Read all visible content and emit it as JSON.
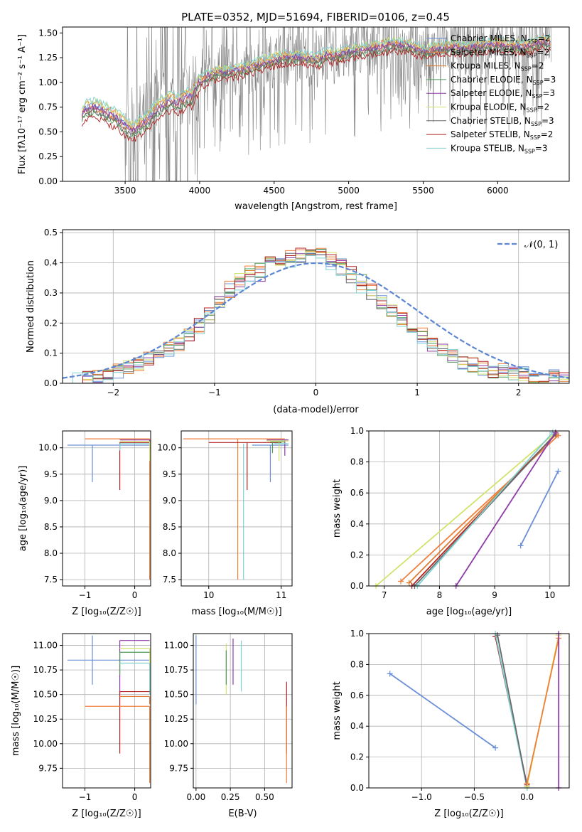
{
  "title": "PLATE=0352, MJD=51694, FIBERID=0106, z=0.45",
  "colors": {
    "series": [
      "#6a8fd8",
      "#f07f3c",
      "#e07a30",
      "#4f9a5a",
      "#8e3aa8",
      "#d2e36a",
      "#6a6a6a",
      "#b22222",
      "#7fd0d0"
    ],
    "data": "#808080",
    "gauss": "#5b86d6",
    "grid": "#b0b0b0"
  },
  "chart_data": [
    {
      "type": "line",
      "xlabel": "wavelength [Angstrom, rest frame]",
      "ylabel": "Flux [f",
      "ylabel_tex": "λ10⁻¹⁷ erg cm⁻² s⁻¹ A⁻¹]",
      "xlim": [
        3080,
        6480
      ],
      "ylim": [
        0.0,
        1.56
      ],
      "xticks": [
        3500,
        4000,
        4500,
        5000,
        5500,
        6000
      ],
      "yticks": [
        "0.00",
        "0.25",
        "0.50",
        "0.75",
        "1.00",
        "1.25",
        "1.50"
      ],
      "legend_position": "top-right",
      "legend": [
        {
          "label": "Chabrier MILES, N",
          "n": "2"
        },
        {
          "label": "Salpeter MILES, N",
          "n": "2"
        },
        {
          "label": "Kroupa MILES, N",
          "n": "2"
        },
        {
          "label": "Chabrier ELODIE, N",
          "n": "3"
        },
        {
          "label": "Salpeter ELODIE, N",
          "n": "3"
        },
        {
          "label": "Kroupa ELODIE, N",
          "n": "2"
        },
        {
          "label": "Chabrier STELIB, N",
          "n": "3"
        },
        {
          "label": "Salpeter STELIB, N",
          "n": "2"
        },
        {
          "label": "Kroupa STELIB, N",
          "n": "3"
        }
      ],
      "legend_sub": "SSP",
      "legend_eq": "=",
      "model_shape": {
        "x": [
          3210,
          3250,
          3300,
          3350,
          3400,
          3450,
          3500,
          3550,
          3600,
          3650,
          3700,
          3750,
          3800,
          3850,
          3900,
          3950,
          4000,
          4050,
          4100,
          4200,
          4300,
          4400,
          4500,
          4600,
          4700,
          4800,
          4850,
          4900,
          5000,
          5100,
          5200,
          5300,
          5400,
          5500,
          5600,
          5700,
          5800,
          5900,
          6000,
          6100,
          6200,
          6300
        ],
        "y": [
          0.68,
          0.72,
          0.74,
          0.7,
          0.66,
          0.62,
          0.55,
          0.5,
          0.55,
          0.6,
          0.7,
          0.76,
          0.8,
          0.78,
          0.82,
          0.85,
          1.0,
          1.05,
          1.08,
          1.1,
          1.12,
          1.18,
          1.22,
          1.25,
          1.24,
          1.22,
          1.28,
          1.25,
          1.3,
          1.32,
          1.35,
          1.38,
          1.36,
          1.3,
          1.33,
          1.35,
          1.34,
          1.36,
          1.38,
          1.36,
          1.35,
          1.4
        ]
      }
    },
    {
      "type": "bar",
      "xlabel": "(data-model)/error",
      "ylabel": "Normed distribution",
      "xlim": [
        -2.5,
        2.5
      ],
      "ylim": [
        0.0,
        0.51
      ],
      "xticks": [
        "−2",
        "−1",
        "0",
        "1",
        "2"
      ],
      "yticks": [
        "0.0",
        "0.1",
        "0.2",
        "0.3",
        "0.4",
        "0.5"
      ],
      "legend_position": "top-right",
      "gauss_label": "𝒩(0, 1)",
      "bin_width": 0.1,
      "histogram": [
        0.01,
        0.01,
        0.02,
        0.02,
        0.03,
        0.04,
        0.05,
        0.06,
        0.08,
        0.09,
        0.11,
        0.13,
        0.16,
        0.19,
        0.22,
        0.27,
        0.31,
        0.34,
        0.36,
        0.37,
        0.39,
        0.4,
        0.41,
        0.42,
        0.43,
        0.42,
        0.41,
        0.39,
        0.36,
        0.33,
        0.3,
        0.27,
        0.24,
        0.21,
        0.18,
        0.16,
        0.13,
        0.11,
        0.09,
        0.07,
        0.06,
        0.05,
        0.04,
        0.04,
        0.03,
        0.03,
        0.02,
        0.02,
        0.02,
        0.01
      ]
    },
    {
      "type": "scatter",
      "xlabel": "Z [log",
      "xlabel_tex": "₁₀(Z/Z",
      "xlabel_end": "☉)]",
      "ylabel": "age  [log",
      "ylabel_tex": "₁₀(age/yr)]",
      "xlim": [
        -1.45,
        0.32
      ],
      "ylim": [
        7.38,
        10.32
      ],
      "xticks": [
        "−1",
        "0"
      ],
      "yticks": [
        "7.5",
        "8.0",
        "8.5",
        "9.0",
        "9.5",
        "10.0"
      ],
      "segments": [
        {
          "c": 0,
          "y": 10.05,
          "x0": -1.35,
          "x1": 0.3,
          "drop": 9.35,
          "dx": -0.85
        },
        {
          "c": 1,
          "y": 10.17,
          "x0": -1.0,
          "x1": 0.3,
          "drop": 7.5,
          "dx": 0.3
        },
        {
          "c": 7,
          "y": 10.1,
          "x0": -0.3,
          "x1": 0.3,
          "drop": 9.2,
          "dx": -0.3
        },
        {
          "c": 4,
          "y": 10.15,
          "x0": -0.3,
          "x1": 0.3,
          "drop": 9.95,
          "dx": 0.3
        },
        {
          "c": 5,
          "y": 10.12,
          "x0": -0.3,
          "x1": 0.3,
          "drop": 9.75,
          "dx": 0.3
        },
        {
          "c": 8,
          "y": 10.08,
          "x0": -0.3,
          "x1": 0.3,
          "drop": 9.95,
          "dx": -0.3
        }
      ]
    },
    {
      "type": "scatter",
      "xlabel": "mass [log",
      "xlabel_tex": "₁₀(M/M",
      "xlabel_end": "☉)]",
      "xlim": [
        9.62,
        11.15
      ],
      "ylim": [
        7.38,
        10.32
      ],
      "xticks": [
        "10",
        "11"
      ],
      "yticks": [
        "7.5",
        "8.0",
        "8.5",
        "9.0",
        "9.5",
        "10.0"
      ],
      "segments": [
        {
          "c": 1,
          "y": 10.17,
          "x0": 9.65,
          "x1": 11.05,
          "drop": 7.5,
          "dx": 10.4
        },
        {
          "c": 7,
          "y": 10.1,
          "x0": 10.0,
          "x1": 11.0,
          "drop": 9.2,
          "dx": 10.53
        },
        {
          "c": 0,
          "y": 10.05,
          "x0": 10.6,
          "x1": 11.1,
          "drop": 9.35,
          "dx": 10.85
        },
        {
          "c": 4,
          "y": 10.15,
          "x0": 10.8,
          "x1": 11.1,
          "drop": 9.85,
          "dx": 11.05
        },
        {
          "c": 5,
          "y": 10.13,
          "x0": 10.8,
          "x1": 11.1,
          "drop": 9.75,
          "dx": 10.97
        },
        {
          "c": 8,
          "y": 10.08,
          "x0": 10.9,
          "x1": 11.1,
          "drop": 7.5,
          "dx": 10.48
        },
        {
          "c": 3,
          "y": 10.11,
          "x0": 10.85,
          "x1": 11.05,
          "drop": 9.9,
          "dx": 10.88
        }
      ]
    },
    {
      "type": "line",
      "xlabel": "age  [log",
      "xlabel_tex": "₁₀(age/yr)]",
      "ylabel": "mass weight",
      "xlim": [
        6.72,
        10.35
      ],
      "ylim": [
        0.0,
        1.0
      ],
      "xticks": [
        "7",
        "8",
        "9",
        "10"
      ],
      "yticks": [
        "0.0",
        "0.2",
        "0.4",
        "0.6",
        "0.8",
        "1.0"
      ],
      "lines": [
        {
          "c": 0,
          "x": [
            9.47,
            10.15
          ],
          "y": [
            0.26,
            0.74
          ]
        },
        {
          "c": 5,
          "x": [
            6.85,
            10.1
          ],
          "y": [
            0.0,
            0.99
          ]
        },
        {
          "c": 1,
          "x": [
            7.3,
            10.15
          ],
          "y": [
            0.03,
            0.97
          ]
        },
        {
          "c": 2,
          "x": [
            7.45,
            10.12
          ],
          "y": [
            0.02,
            0.98
          ]
        },
        {
          "c": 7,
          "x": [
            7.5,
            10.1
          ],
          "y": [
            0.0,
            0.98
          ]
        },
        {
          "c": 6,
          "x": [
            7.55,
            10.1
          ],
          "y": [
            0.0,
            0.98
          ]
        },
        {
          "c": 8,
          "x": [
            7.6,
            10.05
          ],
          "y": [
            0.0,
            0.99
          ]
        },
        {
          "c": 4,
          "x": [
            8.3,
            10.1
          ],
          "y": [
            0.0,
            0.99
          ]
        }
      ]
    },
    {
      "type": "scatter",
      "xlabel": "Z [log",
      "xlabel_tex": "₁₀(Z/Z",
      "xlabel_end": "☉)]",
      "ylabel": "mass [log",
      "ylabel_tex": "₁₀(M/M☉)]",
      "xlim": [
        -1.45,
        0.32
      ],
      "ylim": [
        9.55,
        11.12
      ],
      "xticks": [
        "−1",
        "0"
      ],
      "yticks": [
        "9.75",
        "10.00",
        "10.25",
        "10.50",
        "10.75",
        "11.00"
      ],
      "segments": [
        {
          "c": 0,
          "y": 10.85,
          "x0": -1.35,
          "x1": 0.3,
          "drop": 10.6,
          "dx": -0.85,
          "rise": 11.1
        },
        {
          "c": 4,
          "y": 11.05,
          "x0": -0.3,
          "x1": 0.3,
          "drop": 10.5,
          "dx": -0.3
        },
        {
          "c": 5,
          "y": 10.97,
          "x0": -0.3,
          "x1": 0.3,
          "drop": 10.5,
          "dx": 0.3
        },
        {
          "c": 3,
          "y": 10.93,
          "x0": -0.3,
          "x1": 0.3,
          "drop": 10.7,
          "dx": -0.3
        },
        {
          "c": 8,
          "y": 10.82,
          "x0": -0.3,
          "x1": 0.3,
          "drop": 10.5,
          "dx": 0.3
        },
        {
          "c": 7,
          "y": 10.53,
          "x0": -0.3,
          "x1": 0.3,
          "drop": 9.9,
          "dx": -0.3
        },
        {
          "c": 2,
          "y": 10.48,
          "x0": -0.3,
          "x1": 0.3,
          "drop": 10.4,
          "dx": 0.3
        },
        {
          "c": 1,
          "y": 10.38,
          "x0": -1.0,
          "x1": 0.3,
          "drop": 9.6,
          "dx": 0.3
        }
      ]
    },
    {
      "type": "scatter",
      "xlabel": "E(B-V)",
      "xlim": [
        -0.02,
        0.7
      ],
      "ylim": [
        9.55,
        11.12
      ],
      "xticks": [
        "0.00",
        "0.25",
        "0.50"
      ],
      "yticks": [
        "9.75",
        "10.00",
        "10.25",
        "10.50",
        "10.75",
        "11.00"
      ],
      "vlines": [
        {
          "c": 0,
          "x": 0.0,
          "y0": 10.4,
          "y1": 11.1
        },
        {
          "c": 5,
          "x": 0.22,
          "y0": 10.5,
          "y1": 11.02
        },
        {
          "c": 3,
          "x": 0.22,
          "y0": 10.6,
          "y1": 10.95
        },
        {
          "c": 4,
          "x": 0.27,
          "y0": 10.6,
          "y1": 11.07
        },
        {
          "c": 8,
          "x": 0.33,
          "y0": 10.53,
          "y1": 11.05
        },
        {
          "c": 7,
          "x": 0.66,
          "y0": 9.9,
          "y1": 10.63
        },
        {
          "c": 1,
          "x": 0.66,
          "y0": 9.6,
          "y1": 10.38
        }
      ]
    },
    {
      "type": "line",
      "xlabel": "Z [log",
      "xlabel_tex": "₁₀(Z/Z",
      "xlabel_end": "☉)]",
      "ylabel": "mass weight",
      "xlim": [
        -1.5,
        0.4
      ],
      "ylim": [
        0.0,
        1.0
      ],
      "xticks": [
        "−1.0",
        "−0.5",
        "0.0"
      ],
      "yticks": [
        "0.0",
        "0.2",
        "0.4",
        "0.6",
        "0.8",
        "1.0"
      ],
      "lines": [
        {
          "c": 0,
          "x": [
            -1.3,
            -0.3
          ],
          "y": [
            0.74,
            0.26
          ]
        },
        {
          "c": 7,
          "x": [
            -0.3,
            0.0
          ],
          "y": [
            0.98,
            0.02
          ]
        },
        {
          "c": 8,
          "x": [
            -0.3,
            0.0
          ],
          "y": [
            1.0,
            0.0
          ]
        },
        {
          "c": 6,
          "x": [
            -0.28,
            0.0
          ],
          "y": [
            0.99,
            0.01
          ]
        },
        {
          "c": 5,
          "x": [
            0.0,
            0.3
          ],
          "y": [
            0.01,
            0.99
          ]
        },
        {
          "c": 1,
          "x": [
            0.0,
            0.3
          ],
          "y": [
            0.03,
            0.97
          ]
        },
        {
          "c": 4,
          "x": [
            0.3,
            0.3
          ],
          "y": [
            0.0,
            1.0
          ]
        }
      ]
    }
  ]
}
